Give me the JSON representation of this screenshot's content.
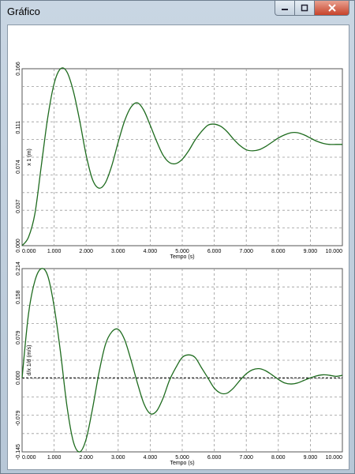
{
  "window": {
    "title": "Gráfico"
  },
  "chart_data": [
    {
      "type": "line",
      "title": "",
      "xlabel": "Tempo (s)",
      "ylabel": "x 1 (m)",
      "xlim": [
        0,
        10
      ],
      "ylim": [
        0,
        0.166
      ],
      "xticks": [
        "0.000",
        "1.000",
        "2.000",
        "3.000",
        "4.000",
        "5.000",
        "6.000",
        "7.000",
        "8.000",
        "9.000",
        "10.000"
      ],
      "yticks": [
        {
          "value": 0,
          "label": "0.000"
        },
        {
          "value": 0.037,
          "label": "0.037"
        },
        {
          "value": 0.074,
          "label": "0.074"
        },
        {
          "value": 0.111,
          "label": "0.111"
        },
        {
          "value": 0.166,
          "label": "0.166"
        }
      ],
      "grid": true,
      "color": "#1e6b1e",
      "series": [
        {
          "x": [
            0,
            0.2,
            0.4,
            0.6,
            0.8,
            1.0,
            1.2,
            1.4,
            1.6,
            1.8,
            2.0,
            2.2,
            2.4,
            2.6,
            2.8,
            3.0,
            3.2,
            3.4,
            3.6,
            3.8,
            4.0,
            4.2,
            4.4,
            4.6,
            4.8,
            5.0,
            5.2,
            5.4,
            5.6,
            5.8,
            6.0,
            6.2,
            6.4,
            6.6,
            6.8,
            7.0,
            7.2,
            7.4,
            7.6,
            7.8,
            8.0,
            8.2,
            8.4,
            8.6,
            8.8,
            9.0,
            9.2,
            9.4,
            9.6,
            9.8,
            10.0
          ],
          "y": [
            0.0,
            0.008,
            0.03,
            0.075,
            0.12,
            0.152,
            0.166,
            0.163,
            0.145,
            0.117,
            0.085,
            0.062,
            0.054,
            0.059,
            0.075,
            0.097,
            0.117,
            0.13,
            0.134,
            0.127,
            0.113,
            0.098,
            0.085,
            0.078,
            0.077,
            0.081,
            0.089,
            0.099,
            0.107,
            0.113,
            0.114,
            0.112,
            0.107,
            0.1,
            0.094,
            0.09,
            0.089,
            0.09,
            0.093,
            0.097,
            0.101,
            0.104,
            0.106,
            0.106,
            0.104,
            0.101,
            0.098,
            0.096,
            0.095,
            0.095,
            0.095
          ]
        }
      ]
    },
    {
      "type": "line",
      "title": "",
      "xlabel": "Tempo (s)",
      "ylabel": "d/x 1/d (m/s)",
      "xlim": [
        0,
        10
      ],
      "ylim": [
        -0.145,
        0.214
      ],
      "xticks": [
        "0.000",
        "1.000",
        "2.000",
        "3.000",
        "4.000",
        "5.000",
        "6.000",
        "7.000",
        "8.000",
        "9.000",
        "10.000"
      ],
      "yticks": [
        {
          "value": -0.145,
          "label": "-0.145"
        },
        {
          "value": -0.079,
          "label": "-0.079"
        },
        {
          "value": 0,
          "label": "0.000"
        },
        {
          "value": 0.079,
          "label": "0.079"
        },
        {
          "value": 0.158,
          "label": "0.158"
        },
        {
          "value": 0.214,
          "label": "0.214"
        }
      ],
      "zero_line": true,
      "grid": true,
      "color": "#1e6b1e",
      "series": [
        {
          "x": [
            0,
            0.2,
            0.4,
            0.6,
            0.8,
            1.0,
            1.2,
            1.4,
            1.6,
            1.8,
            2.0,
            2.2,
            2.4,
            2.6,
            2.8,
            3.0,
            3.2,
            3.4,
            3.6,
            3.8,
            4.0,
            4.2,
            4.4,
            4.6,
            4.8,
            5.0,
            5.2,
            5.4,
            5.6,
            5.8,
            6.0,
            6.2,
            6.4,
            6.6,
            6.8,
            7.0,
            7.2,
            7.4,
            7.6,
            7.8,
            8.0,
            8.2,
            8.4,
            8.6,
            8.8,
            9.0,
            9.2,
            9.4,
            9.6,
            9.8,
            10.0
          ],
          "y": [
            0.0,
            0.125,
            0.19,
            0.214,
            0.2,
            0.14,
            0.05,
            -0.055,
            -0.125,
            -0.145,
            -0.12,
            -0.06,
            0.01,
            0.065,
            0.09,
            0.095,
            0.075,
            0.035,
            -0.01,
            -0.05,
            -0.07,
            -0.065,
            -0.04,
            -0.005,
            0.02,
            0.04,
            0.045,
            0.04,
            0.02,
            0.0,
            -0.02,
            -0.03,
            -0.03,
            -0.02,
            -0.005,
            0.008,
            0.016,
            0.018,
            0.014,
            0.006,
            -0.003,
            -0.01,
            -0.012,
            -0.01,
            -0.005,
            0.0,
            0.004,
            0.006,
            0.005,
            0.003,
            0.005
          ]
        }
      ]
    }
  ]
}
